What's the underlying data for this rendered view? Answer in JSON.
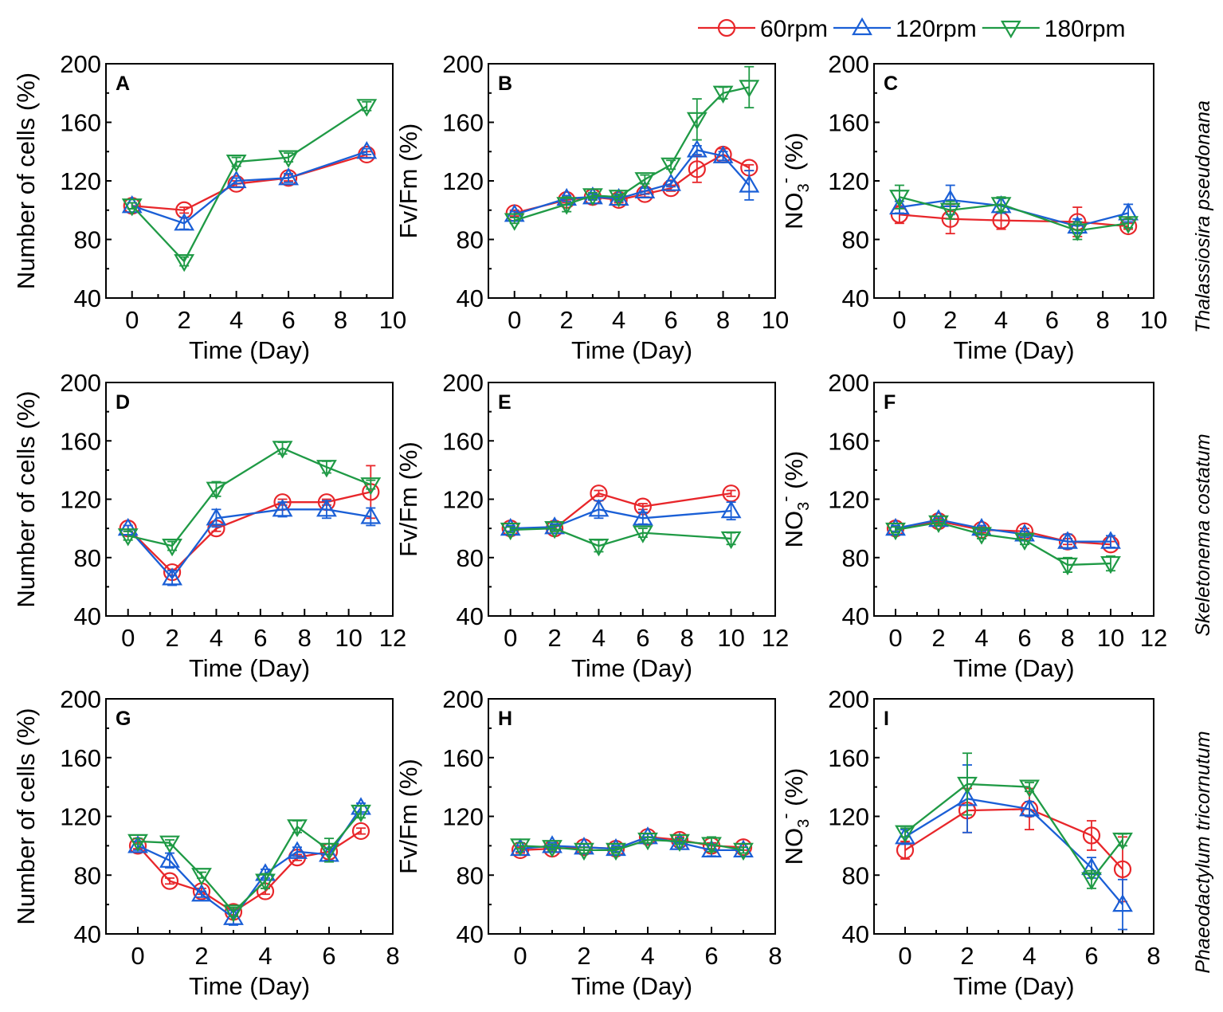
{
  "legend": {
    "placement": "top-right",
    "entries": [
      {
        "name": "60rpm",
        "color": "#e8262a",
        "marker": "circle"
      },
      {
        "name": "120rpm",
        "color": "#1a5fd6",
        "marker": "triangle-up"
      },
      {
        "name": "180rpm",
        "color": "#1f9a45",
        "marker": "triangle-down"
      }
    ]
  },
  "row_labels": [
    "Thalassiosira pseudonana",
    "Skeletonema costatum",
    "Phaeodactylum tricornutum"
  ],
  "chart_data": [
    {
      "type": "line",
      "panel": "A",
      "row": 0,
      "col": 0,
      "xlabel": "Time (Day)",
      "ylabel": "Number of cells (%)",
      "ylabel_kind": "plain",
      "xlim": [
        -1,
        10
      ],
      "ylim": [
        40,
        200
      ],
      "xticks": [
        0,
        2,
        4,
        6,
        8,
        10
      ],
      "yticks": [
        40,
        80,
        120,
        160,
        200
      ],
      "series": [
        {
          "name": "60rpm",
          "x": [
            0,
            2,
            4,
            6,
            9
          ],
          "values": [
            103,
            100,
            118,
            122,
            138
          ],
          "err": [
            2,
            2,
            2,
            2,
            2
          ]
        },
        {
          "name": "120rpm",
          "x": [
            0,
            2,
            4,
            6,
            9
          ],
          "values": [
            103,
            91,
            120,
            122,
            140
          ],
          "err": [
            2,
            4,
            2,
            3,
            2
          ]
        },
        {
          "name": "180rpm",
          "x": [
            0,
            2,
            4,
            6,
            9
          ],
          "values": [
            103,
            65,
            133,
            136,
            171
          ],
          "err": [
            2,
            3,
            3,
            3,
            3
          ]
        }
      ]
    },
    {
      "type": "line",
      "panel": "B",
      "row": 0,
      "col": 1,
      "xlabel": "Time (Day)",
      "ylabel": "Fv/Fm (%)",
      "ylabel_kind": "plain",
      "xlim": [
        -1,
        10
      ],
      "ylim": [
        40,
        200
      ],
      "xticks": [
        0,
        2,
        4,
        6,
        8,
        10
      ],
      "yticks": [
        40,
        80,
        120,
        160,
        200
      ],
      "series": [
        {
          "name": "60rpm",
          "x": [
            0,
            2,
            3,
            4,
            5,
            6,
            7,
            8,
            9
          ],
          "values": [
            98,
            107,
            109,
            107,
            111,
            115,
            128,
            138,
            129
          ],
          "err": [
            2,
            2,
            2,
            2,
            2,
            2,
            9,
            4,
            2
          ]
        },
        {
          "name": "120rpm",
          "x": [
            0,
            2,
            3,
            4,
            5,
            6,
            7,
            8,
            9
          ],
          "values": [
            97,
            108,
            109,
            108,
            113,
            118,
            141,
            137,
            117
          ],
          "err": [
            2,
            2,
            2,
            2,
            2,
            2,
            3,
            3,
            10
          ]
        },
        {
          "name": "180rpm",
          "x": [
            0,
            2,
            3,
            4,
            5,
            6,
            7,
            8,
            9
          ],
          "values": [
            93,
            104,
            110,
            109,
            121,
            131,
            162,
            180,
            184
          ],
          "err": [
            2,
            5,
            2,
            2,
            3,
            3,
            14,
            4,
            14
          ]
        }
      ]
    },
    {
      "type": "line",
      "panel": "C",
      "row": 0,
      "col": 2,
      "xlabel": "Time (Day)",
      "ylabel": "NO3- (%)",
      "ylabel_kind": "nitrate",
      "xlim": [
        -1,
        10
      ],
      "ylim": [
        40,
        200
      ],
      "xticks": [
        0,
        2,
        4,
        6,
        8,
        10
      ],
      "yticks": [
        40,
        80,
        120,
        160,
        200
      ],
      "series": [
        {
          "name": "60rpm",
          "x": [
            0,
            2,
            4,
            7,
            9
          ],
          "values": [
            97,
            94,
            93,
            92,
            89
          ],
          "err": [
            6,
            10,
            6,
            10,
            2
          ]
        },
        {
          "name": "120rpm",
          "x": [
            0,
            2,
            4,
            7,
            9
          ],
          "values": [
            102,
            107,
            103,
            89,
            98
          ],
          "err": [
            4,
            10,
            5,
            5,
            6
          ]
        },
        {
          "name": "180rpm",
          "x": [
            0,
            2,
            4,
            7,
            9
          ],
          "values": [
            109,
            100,
            104,
            86,
            91
          ],
          "err": [
            8,
            6,
            5,
            6,
            3
          ]
        }
      ]
    },
    {
      "type": "line",
      "panel": "D",
      "row": 1,
      "col": 0,
      "xlabel": "Time (Day)",
      "ylabel": "Number of cells (%)",
      "ylabel_kind": "plain",
      "xlim": [
        -1,
        12
      ],
      "ylim": [
        40,
        200
      ],
      "xticks": [
        0,
        2,
        4,
        6,
        8,
        10,
        12
      ],
      "yticks": [
        40,
        80,
        120,
        160,
        200
      ],
      "series": [
        {
          "name": "60rpm",
          "x": [
            0,
            2,
            4,
            7,
            9,
            11
          ],
          "values": [
            100,
            70,
            100,
            118,
            118,
            125
          ],
          "err": [
            2,
            2,
            2,
            2,
            2,
            18
          ]
        },
        {
          "name": "120rpm",
          "x": [
            0,
            2,
            4,
            7,
            9,
            11
          ],
          "values": [
            100,
            66,
            107,
            113,
            113,
            108
          ],
          "err": [
            2,
            5,
            6,
            5,
            6,
            6
          ]
        },
        {
          "name": "180rpm",
          "x": [
            0,
            2,
            4,
            7,
            9,
            11
          ],
          "values": [
            95,
            88,
            127,
            155,
            142,
            130
          ],
          "err": [
            3,
            3,
            5,
            4,
            4,
            3
          ]
        }
      ]
    },
    {
      "type": "line",
      "panel": "E",
      "row": 1,
      "col": 1,
      "xlabel": "Time (Day)",
      "ylabel": "Fv/Fm (%)",
      "ylabel_kind": "plain",
      "xlim": [
        -1,
        12
      ],
      "ylim": [
        40,
        200
      ],
      "xticks": [
        0,
        2,
        4,
        6,
        8,
        10,
        12
      ],
      "yticks": [
        40,
        80,
        120,
        160,
        200
      ],
      "series": [
        {
          "name": "60rpm",
          "x": [
            0,
            2,
            4,
            6,
            10
          ],
          "values": [
            100,
            100,
            124,
            115,
            124
          ],
          "err": [
            2,
            2,
            2,
            2,
            2
          ]
        },
        {
          "name": "120rpm",
          "x": [
            0,
            2,
            4,
            6,
            10
          ],
          "values": [
            100,
            101,
            113,
            107,
            112
          ],
          "err": [
            2,
            2,
            6,
            4,
            6
          ]
        },
        {
          "name": "180rpm",
          "x": [
            0,
            2,
            4,
            6,
            10
          ],
          "values": [
            99,
            100,
            88,
            97,
            93
          ],
          "err": [
            2,
            2,
            4,
            3,
            4
          ]
        }
      ]
    },
    {
      "type": "line",
      "panel": "F",
      "row": 1,
      "col": 2,
      "xlabel": "Time (Day)",
      "ylabel": "NO3- (%)",
      "ylabel_kind": "nitrate",
      "xlim": [
        -1,
        12
      ],
      "ylim": [
        40,
        200
      ],
      "xticks": [
        0,
        2,
        4,
        6,
        8,
        10,
        12
      ],
      "yticks": [
        40,
        80,
        120,
        160,
        200
      ],
      "series": [
        {
          "name": "60rpm",
          "x": [
            0,
            2,
            4,
            6,
            8,
            10
          ],
          "values": [
            100,
            105,
            99,
            98,
            91,
            89
          ],
          "err": [
            2,
            2,
            2,
            2,
            2,
            2
          ]
        },
        {
          "name": "120rpm",
          "x": [
            0,
            2,
            4,
            6,
            8,
            10
          ],
          "values": [
            100,
            106,
            100,
            96,
            91,
            91
          ],
          "err": [
            2,
            2,
            2,
            2,
            5,
            4
          ]
        },
        {
          "name": "180rpm",
          "x": [
            0,
            2,
            4,
            6,
            8,
            10
          ],
          "values": [
            99,
            104,
            96,
            92,
            75,
            76
          ],
          "err": [
            2,
            2,
            3,
            3,
            5,
            5
          ]
        }
      ]
    },
    {
      "type": "line",
      "panel": "G",
      "row": 2,
      "col": 0,
      "xlabel": "Time (Day)",
      "ylabel": "Number of cells (%)",
      "ylabel_kind": "plain",
      "xlim": [
        -1,
        8
      ],
      "ylim": [
        40,
        200
      ],
      "xticks": [
        0,
        2,
        4,
        6,
        8
      ],
      "yticks": [
        40,
        80,
        120,
        160,
        200
      ],
      "series": [
        {
          "name": "60rpm",
          "x": [
            0,
            1,
            2,
            3,
            4,
            5,
            6,
            7
          ],
          "values": [
            100,
            76,
            69,
            55,
            69,
            92,
            96,
            110
          ],
          "err": [
            2,
            2,
            2,
            2,
            2,
            2,
            2,
            2
          ]
        },
        {
          "name": "120rpm",
          "x": [
            0,
            1,
            2,
            3,
            4,
            5,
            6,
            7
          ],
          "values": [
            100,
            90,
            67,
            51,
            81,
            96,
            94,
            126
          ],
          "err": [
            3,
            5,
            2,
            5,
            3,
            3,
            4,
            3
          ]
        },
        {
          "name": "180rpm",
          "x": [
            0,
            1,
            2,
            3,
            4,
            5,
            6,
            7
          ],
          "values": [
            103,
            102,
            80,
            55,
            76,
            113,
            97,
            123
          ],
          "err": [
            2,
            2,
            2,
            3,
            5,
            4,
            8,
            4
          ]
        }
      ]
    },
    {
      "type": "line",
      "panel": "H",
      "row": 2,
      "col": 1,
      "xlabel": "Time (Day)",
      "ylabel": "Fv/Fm (%)",
      "ylabel_kind": "plain",
      "xlim": [
        -1,
        8
      ],
      "ylim": [
        40,
        200
      ],
      "xticks": [
        0,
        2,
        4,
        6,
        8
      ],
      "yticks": [
        40,
        80,
        120,
        160,
        200
      ],
      "series": [
        {
          "name": "60rpm",
          "x": [
            0,
            1,
            2,
            3,
            4,
            5,
            6,
            7
          ],
          "values": [
            97,
            98,
            99,
            98,
            106,
            104,
            100,
            99
          ],
          "err": [
            2,
            2,
            2,
            2,
            2,
            2,
            2,
            2
          ]
        },
        {
          "name": "120rpm",
          "x": [
            0,
            1,
            2,
            3,
            4,
            5,
            6,
            7
          ],
          "values": [
            98,
            100,
            99,
            98,
            106,
            102,
            97,
            97
          ],
          "err": [
            2,
            2,
            2,
            2,
            2,
            3,
            4,
            2
          ]
        },
        {
          "name": "180rpm",
          "x": [
            0,
            1,
            2,
            3,
            4,
            5,
            6,
            7
          ],
          "values": [
            100,
            99,
            97,
            97,
            104,
            103,
            101,
            97
          ],
          "err": [
            2,
            2,
            2,
            2,
            2,
            2,
            5,
            2
          ]
        }
      ]
    },
    {
      "type": "line",
      "panel": "I",
      "row": 2,
      "col": 2,
      "xlabel": "Time (Day)",
      "ylabel": "NO3- (%)",
      "ylabel_kind": "nitrate",
      "xlim": [
        -1,
        8
      ],
      "ylim": [
        40,
        200
      ],
      "xticks": [
        0,
        2,
        4,
        6,
        8
      ],
      "yticks": [
        40,
        80,
        120,
        160,
        200
      ],
      "series": [
        {
          "name": "60rpm",
          "x": [
            0,
            2,
            4,
            6,
            7
          ],
          "values": [
            97,
            124,
            125,
            107,
            84
          ],
          "err": [
            6,
            15,
            14,
            10,
            22
          ]
        },
        {
          "name": "120rpm",
          "x": [
            0,
            2,
            4,
            6,
            7
          ],
          "values": [
            106,
            132,
            125,
            85,
            60
          ],
          "err": [
            5,
            23,
            5,
            7,
            17
          ]
        },
        {
          "name": "180rpm",
          "x": [
            0,
            2,
            4,
            6,
            7
          ],
          "values": [
            109,
            142,
            140,
            77,
            104
          ],
          "err": [
            3,
            21,
            3,
            6,
            4
          ]
        }
      ]
    }
  ]
}
